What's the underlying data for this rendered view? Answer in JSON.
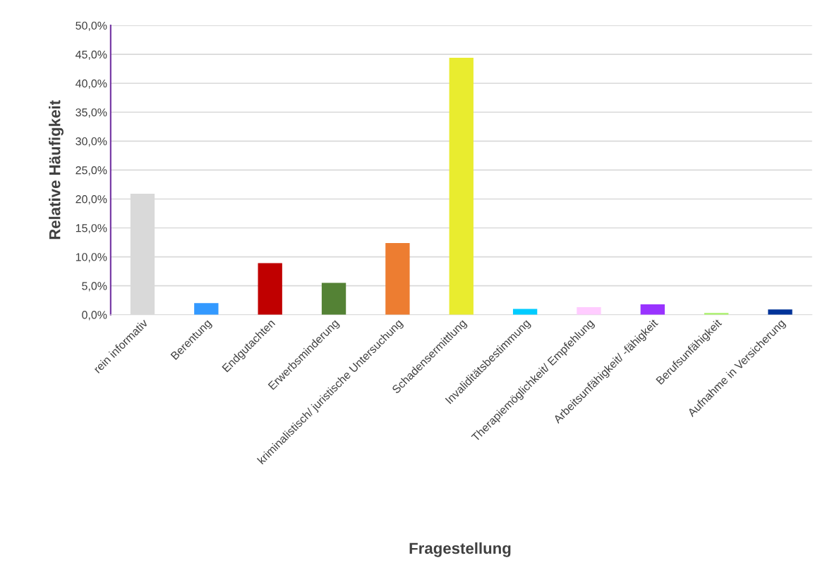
{
  "chart_data": {
    "type": "bar",
    "xlabel": "Fragestellung",
    "ylabel": "Relative Häufigkeit",
    "categories": [
      "rein informativ",
      "Berentung",
      "Endgutachten",
      "Erwerbsminderung",
      "kriminalistisch/ juristische Untersuchung",
      "Schadensermittlung",
      "Invaliditätsbestimmung",
      "Therapiemöglichkeit/ Empfehlung",
      "Arbeitsunfähigkeit/ -fähigkeit",
      "Berufsunfähigkeit",
      "Aufnahme in Versicherung"
    ],
    "values": [
      20.9,
      2.0,
      8.9,
      5.5,
      12.4,
      44.4,
      1.0,
      1.3,
      1.8,
      0.3,
      0.9
    ],
    "colors": [
      "#d9d9d9",
      "#3399ff",
      "#c00000",
      "#548235",
      "#ed7d31",
      "#e9ec2f",
      "#00ccff",
      "#ffccff",
      "#9933ff",
      "#a9f06a",
      "#003399"
    ],
    "ylim": [
      0,
      50
    ],
    "yticks": [
      {
        "value": 0,
        "label": "0,0%"
      },
      {
        "value": 5,
        "label": "5,0%"
      },
      {
        "value": 10,
        "label": "10,0%"
      },
      {
        "value": 15,
        "label": "15,0%"
      },
      {
        "value": 20,
        "label": "20,0%"
      },
      {
        "value": 25,
        "label": "25,0%"
      },
      {
        "value": 30,
        "label": "30,0%"
      },
      {
        "value": 35,
        "label": "35,0%"
      },
      {
        "value": 40,
        "label": "40,0%"
      },
      {
        "value": 45,
        "label": "45,0%"
      },
      {
        "value": 50,
        "label": "50,0%"
      }
    ],
    "grid": "y"
  }
}
